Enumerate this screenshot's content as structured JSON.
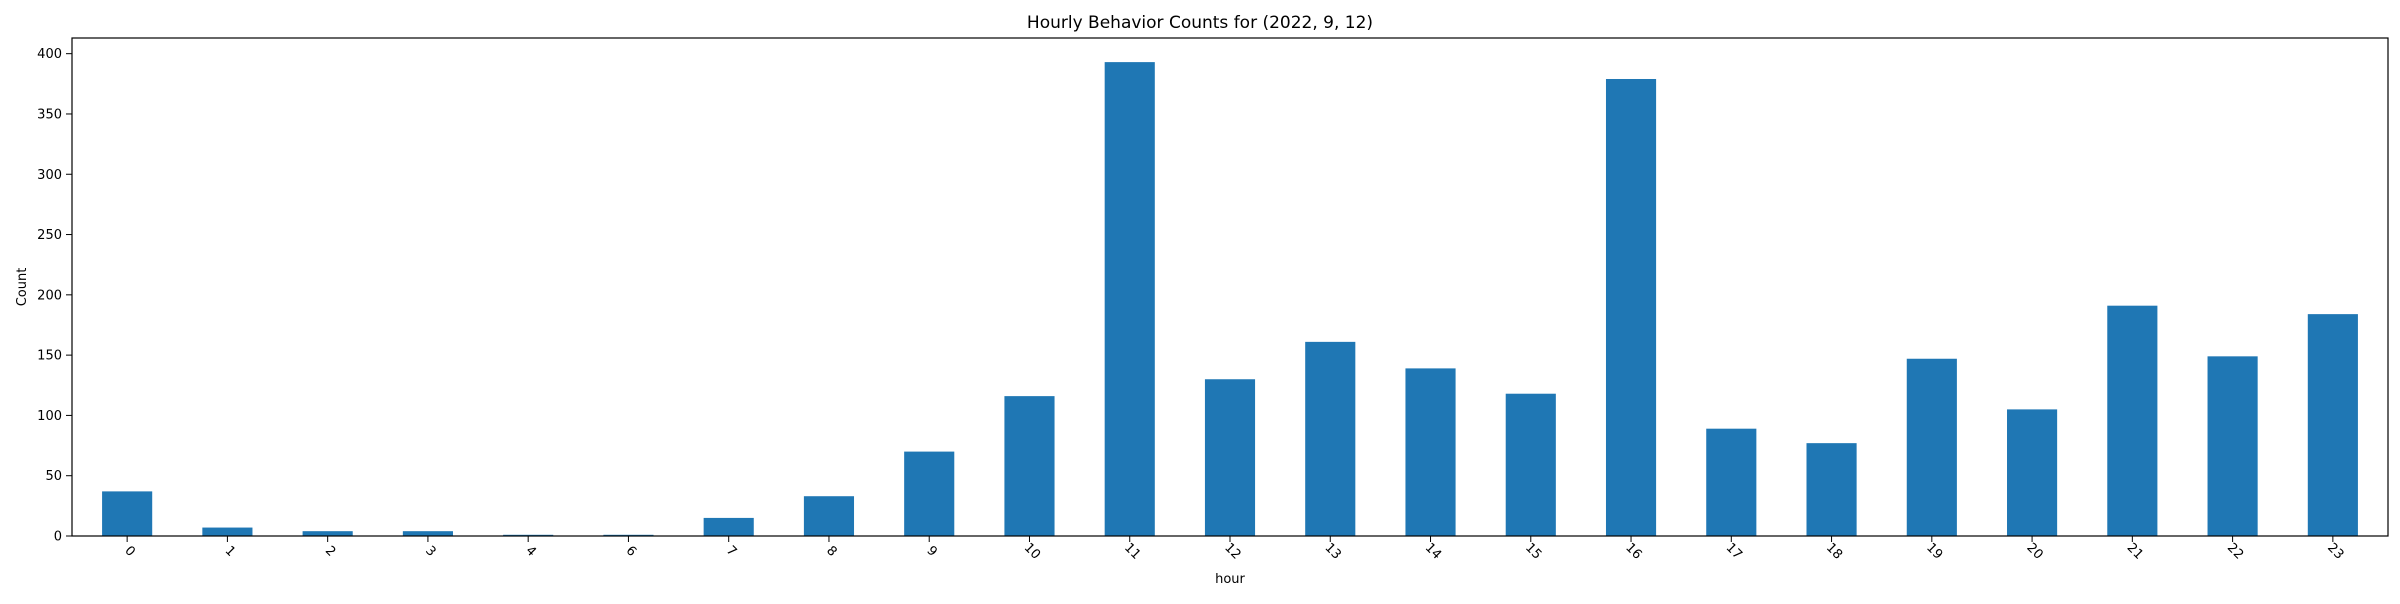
{
  "chart_data": {
    "type": "bar",
    "title": "Hourly Behavior Counts for (2022, 9, 12)",
    "xlabel": "hour",
    "ylabel": "Count",
    "categories": [
      "0",
      "1",
      "2",
      "3",
      "4",
      "6",
      "7",
      "8",
      "9",
      "10",
      "11",
      "12",
      "13",
      "14",
      "15",
      "16",
      "17",
      "18",
      "19",
      "20",
      "21",
      "22",
      "23"
    ],
    "values": [
      37,
      7,
      4,
      4,
      1,
      1,
      15,
      33,
      70,
      116,
      393,
      130,
      161,
      139,
      118,
      379,
      89,
      77,
      147,
      105,
      191,
      149,
      184
    ],
    "ylim": [
      0,
      413
    ],
    "yticks": [
      0,
      50,
      100,
      150,
      200,
      250,
      300,
      350,
      400
    ],
    "bar_color": "#1f77b4",
    "grid": false,
    "legend": "none"
  }
}
